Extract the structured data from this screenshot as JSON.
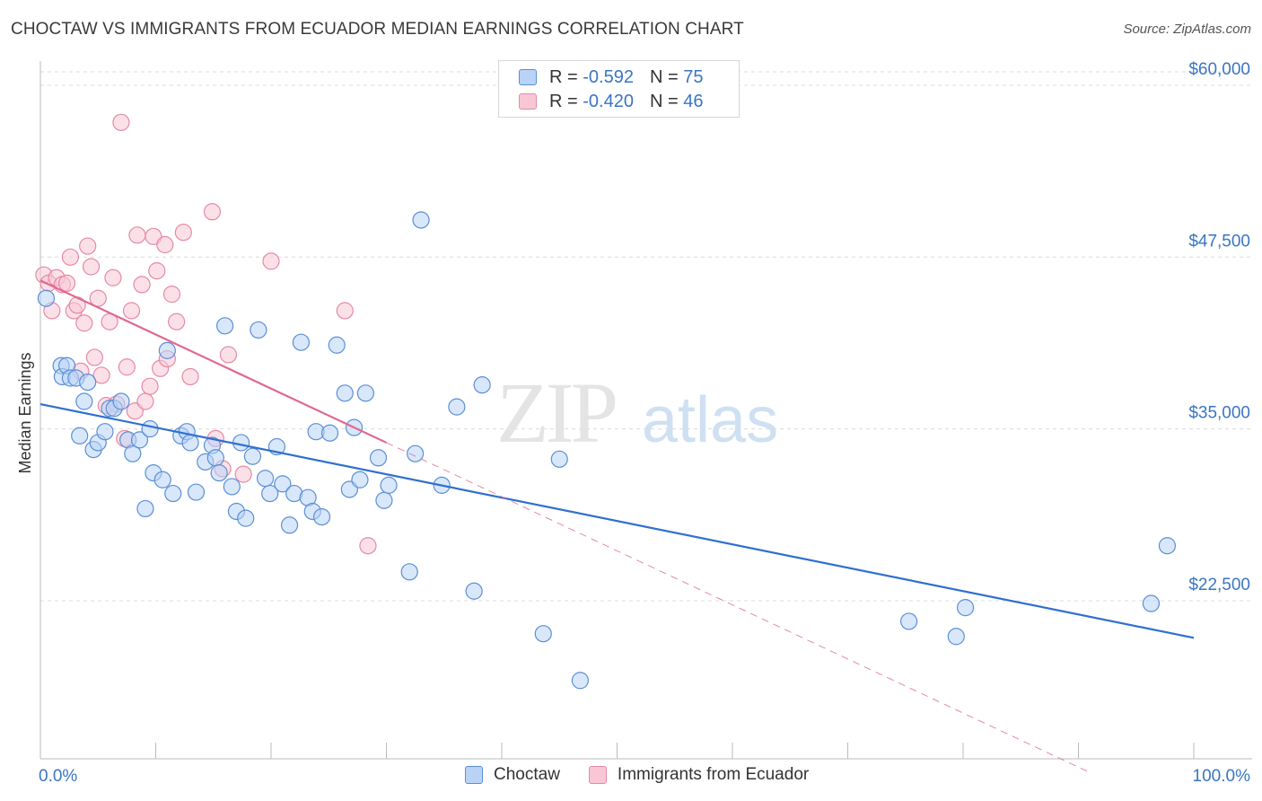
{
  "title": "CHOCTAW VS IMMIGRANTS FROM ECUADOR MEDIAN EARNINGS CORRELATION CHART",
  "source": "Source: ZipAtlas.com",
  "watermark": {
    "zip": "ZIP",
    "atlas": "atlas"
  },
  "legend": {
    "rows": [
      {
        "r_label": "R =",
        "r_value": "-0.592",
        "n_label": "N =",
        "n_value": "75"
      },
      {
        "r_label": "R =",
        "r_value": "-0.420",
        "n_label": "N =",
        "n_value": "46"
      }
    ]
  },
  "colors": {
    "choctaw_fill": "#b8d3f5",
    "choctaw_stroke": "#5b8fd6",
    "choctaw_line": "#2f6fcf",
    "ecuador_fill": "#f9c6d6",
    "ecuador_stroke": "#e48aa6",
    "ecuador_line": "#e0698f",
    "axis_text": "#3a75c4",
    "grid": "#dcdcdc"
  },
  "chart_data": {
    "type": "scatter",
    "title": "CHOCTAW VS IMMIGRANTS FROM ECUADOR MEDIAN EARNINGS CORRELATION CHART",
    "xlabel": "",
    "ylabel": "Median Earnings",
    "xlim": [
      0,
      100
    ],
    "ylim": [
      11000,
      61500
    ],
    "x_tick_labels": [
      "0.0%",
      "100.0%"
    ],
    "y_ticks": [
      {
        "value": 22500,
        "label": "$22,500"
      },
      {
        "value": 35000,
        "label": "$35,000"
      },
      {
        "value": 47500,
        "label": "$47,500"
      },
      {
        "value": 60000,
        "label": "$60,000"
      }
    ],
    "grid": "horizontal dashed",
    "legend_placement": "top-center",
    "series": [
      {
        "name": "Choctaw",
        "r": -0.592,
        "n": 75,
        "trend": {
          "x": [
            0,
            100
          ],
          "y": [
            36800,
            19800
          ],
          "style": "solid"
        },
        "points": [
          [
            0.5,
            44.5
          ],
          [
            1.8,
            39.6
          ],
          [
            1.9,
            38.8
          ],
          [
            2.3,
            39.6
          ],
          [
            2.6,
            38.7
          ],
          [
            3.1,
            38.7
          ],
          [
            3.4,
            34.5
          ],
          [
            3.8,
            37.0
          ],
          [
            4.1,
            38.4
          ],
          [
            4.6,
            33.5
          ],
          [
            5.0,
            34.0
          ],
          [
            5.6,
            34.8
          ],
          [
            6.0,
            36.5
          ],
          [
            6.4,
            36.5
          ],
          [
            7.0,
            37.0
          ],
          [
            7.6,
            34.2
          ],
          [
            8.0,
            33.2
          ],
          [
            8.6,
            34.2
          ],
          [
            9.1,
            29.2
          ],
          [
            9.5,
            35.0
          ],
          [
            9.8,
            31.8
          ],
          [
            10.6,
            31.3
          ],
          [
            11.0,
            40.7
          ],
          [
            11.5,
            30.3
          ],
          [
            12.2,
            34.5
          ],
          [
            12.7,
            34.8
          ],
          [
            13.0,
            34.0
          ],
          [
            13.5,
            30.4
          ],
          [
            14.3,
            32.6
          ],
          [
            14.9,
            33.8
          ],
          [
            15.2,
            32.9
          ],
          [
            15.5,
            31.8
          ],
          [
            16.0,
            42.5
          ],
          [
            16.6,
            30.8
          ],
          [
            17.0,
            29.0
          ],
          [
            17.4,
            34.0
          ],
          [
            17.8,
            28.5
          ],
          [
            18.4,
            33.0
          ],
          [
            18.9,
            42.2
          ],
          [
            19.5,
            31.4
          ],
          [
            19.9,
            30.3
          ],
          [
            20.5,
            33.7
          ],
          [
            21.0,
            31.0
          ],
          [
            21.6,
            28.0
          ],
          [
            22.0,
            30.3
          ],
          [
            22.6,
            41.3
          ],
          [
            23.2,
            30.0
          ],
          [
            23.6,
            29.0
          ],
          [
            23.9,
            34.8
          ],
          [
            24.4,
            28.6
          ],
          [
            25.1,
            34.7
          ],
          [
            25.7,
            41.1
          ],
          [
            26.4,
            37.6
          ],
          [
            26.8,
            30.6
          ],
          [
            27.2,
            35.1
          ],
          [
            27.7,
            31.3
          ],
          [
            28.2,
            37.6
          ],
          [
            29.3,
            32.9
          ],
          [
            29.8,
            29.8
          ],
          [
            30.2,
            30.9
          ],
          [
            32.0,
            24.6
          ],
          [
            32.5,
            33.2
          ],
          [
            33.0,
            50.2
          ],
          [
            34.8,
            30.9
          ],
          [
            36.1,
            36.6
          ],
          [
            37.6,
            23.2
          ],
          [
            38.3,
            38.2
          ],
          [
            43.6,
            20.1
          ],
          [
            45.0,
            32.8
          ],
          [
            46.8,
            16.7
          ],
          [
            75.3,
            21.0
          ],
          [
            79.4,
            19.9
          ],
          [
            80.2,
            22.0
          ],
          [
            96.3,
            22.3
          ],
          [
            97.7,
            26.5
          ]
        ]
      },
      {
        "name": "Immigrants from Ecuador",
        "r": -0.42,
        "n": 46,
        "trend": {
          "x": [
            0,
            30
          ],
          "y": [
            45800,
            34000
          ],
          "style": "solid",
          "extension": {
            "x": [
              30,
              91
            ],
            "y": [
              34000,
              10000
            ],
            "style": "dashed"
          }
        },
        "points": [
          [
            0.3,
            46.2
          ],
          [
            0.7,
            45.6
          ],
          [
            1.0,
            43.6
          ],
          [
            1.4,
            46.0
          ],
          [
            1.9,
            45.5
          ],
          [
            2.3,
            45.6
          ],
          [
            2.6,
            47.5
          ],
          [
            2.9,
            43.6
          ],
          [
            3.2,
            44.0
          ],
          [
            3.5,
            39.2
          ],
          [
            3.8,
            42.7
          ],
          [
            4.1,
            48.3
          ],
          [
            4.4,
            46.8
          ],
          [
            4.7,
            40.2
          ],
          [
            5.0,
            44.5
          ],
          [
            5.3,
            38.9
          ],
          [
            5.7,
            36.7
          ],
          [
            6.0,
            42.8
          ],
          [
            6.3,
            46.0
          ],
          [
            6.6,
            36.8
          ],
          [
            7.0,
            57.3
          ],
          [
            7.3,
            34.3
          ],
          [
            7.5,
            39.5
          ],
          [
            7.9,
            43.6
          ],
          [
            8.2,
            36.3
          ],
          [
            8.4,
            49.1
          ],
          [
            8.8,
            45.5
          ],
          [
            9.1,
            37.0
          ],
          [
            9.5,
            38.1
          ],
          [
            9.8,
            49.0
          ],
          [
            10.1,
            46.5
          ],
          [
            10.4,
            39.4
          ],
          [
            10.8,
            48.4
          ],
          [
            11.0,
            40.1
          ],
          [
            11.4,
            44.8
          ],
          [
            11.8,
            42.8
          ],
          [
            12.4,
            49.3
          ],
          [
            13.0,
            38.8
          ],
          [
            14.9,
            50.8
          ],
          [
            15.2,
            34.3
          ],
          [
            15.8,
            32.1
          ],
          [
            16.3,
            40.4
          ],
          [
            17.6,
            31.7
          ],
          [
            26.4,
            43.6
          ],
          [
            28.4,
            26.5
          ],
          [
            20.0,
            47.2
          ]
        ]
      }
    ]
  }
}
